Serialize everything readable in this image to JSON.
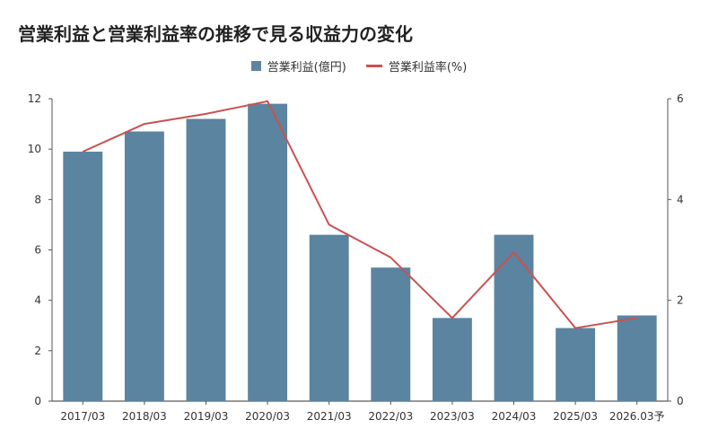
{
  "chart_data": {
    "type": "bar",
    "title": "営業利益と営業利益率の推移で見る収益力の変化",
    "categories": [
      "2017/03",
      "2018/03",
      "2019/03",
      "2020/03",
      "2021/03",
      "2022/03",
      "2023/03",
      "2024/03",
      "2025/03",
      "2026.03予"
    ],
    "series": [
      {
        "name": "営業利益(億円)",
        "type": "bar",
        "axis": "left",
        "color": "#5b84a1",
        "values": [
          9.9,
          10.7,
          11.2,
          11.8,
          6.6,
          5.3,
          3.3,
          6.6,
          2.9,
          3.4
        ]
      },
      {
        "name": "営業利益率(%)",
        "type": "line",
        "axis": "right",
        "color": "#c9514f",
        "values": [
          4.95,
          5.5,
          5.7,
          5.95,
          3.5,
          2.85,
          1.65,
          2.95,
          1.45,
          1.65
        ]
      }
    ],
    "y_left": {
      "min": 0,
      "max": 12,
      "ticks": [
        0,
        2,
        4,
        6,
        8,
        10,
        12
      ]
    },
    "y_right": {
      "min": 0,
      "max": 6,
      "ticks": [
        0,
        2,
        4,
        6
      ]
    },
    "legend_position": "top-center",
    "grid": "none"
  }
}
